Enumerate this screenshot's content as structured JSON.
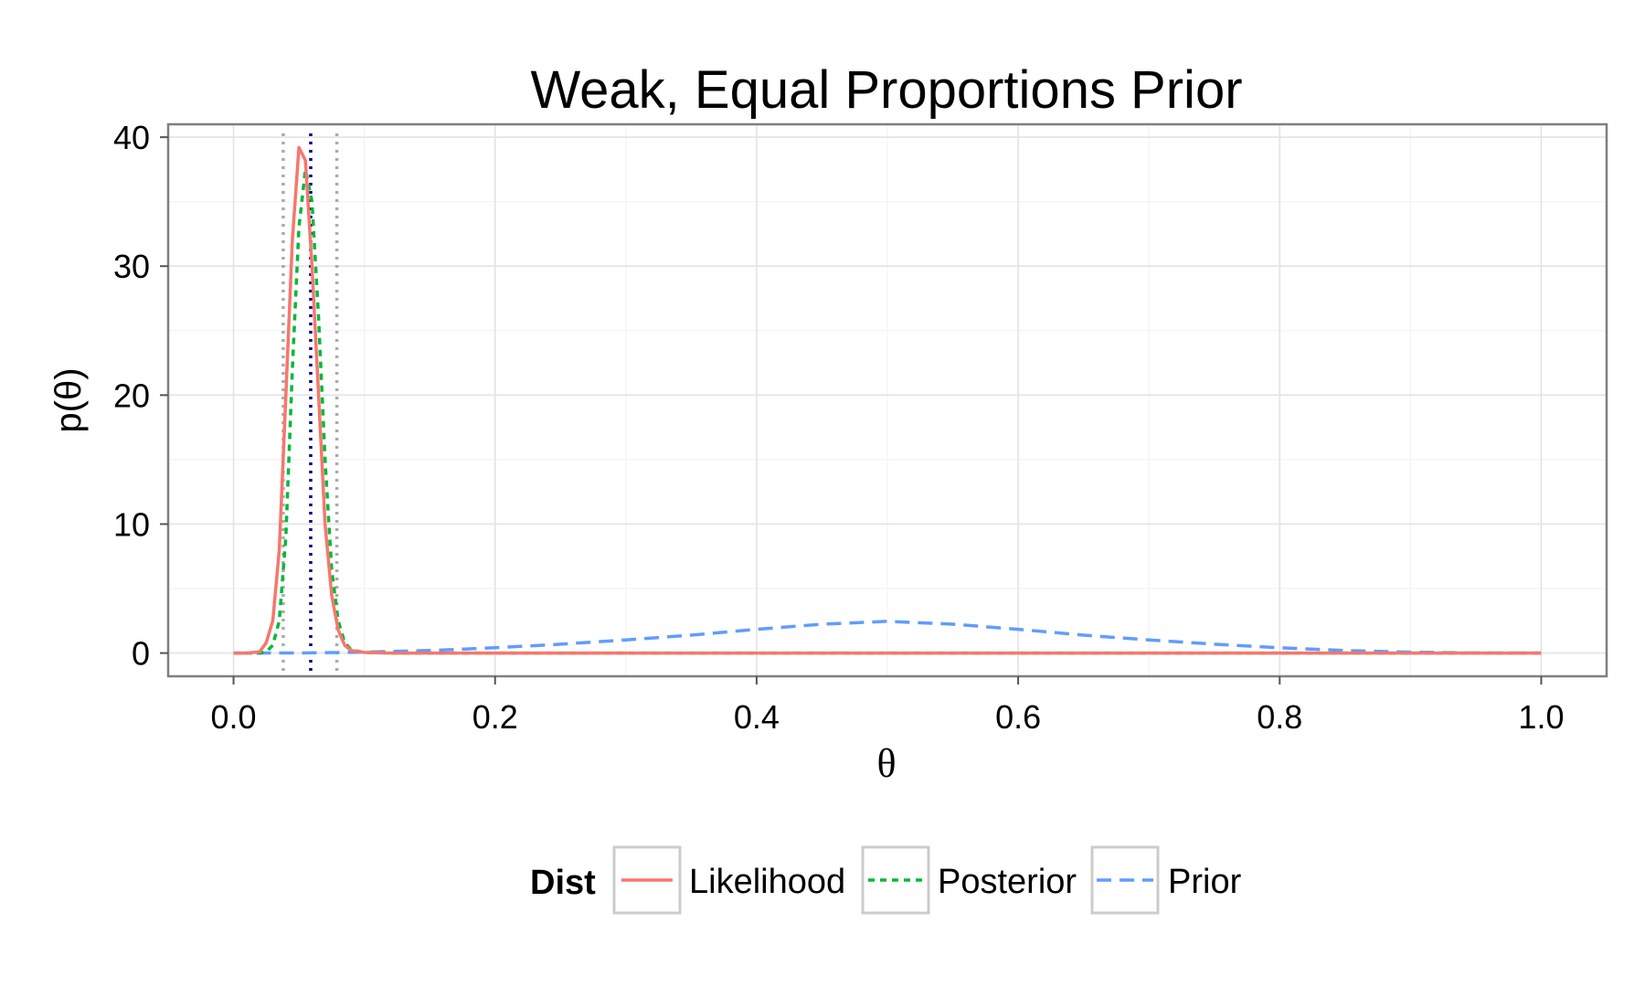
{
  "chart_data": {
    "type": "line",
    "title": "Weak, Equal Proportions Prior",
    "xlabel": "θ",
    "ylabel": "p(θ)",
    "xlim": [
      -0.05,
      1.05
    ],
    "ylim": [
      -1.8,
      41
    ],
    "x_ticks": [
      "0.0",
      "0.2",
      "0.4",
      "0.6",
      "0.8",
      "1.0"
    ],
    "x_tick_values": [
      0,
      0.2,
      0.4,
      0.6,
      0.8,
      1.0
    ],
    "y_ticks": [
      "0",
      "10",
      "20",
      "30",
      "40"
    ],
    "y_tick_values": [
      0,
      10,
      20,
      30,
      40
    ],
    "grid": true,
    "legend": {
      "position": "bottom",
      "title": "Dist",
      "entries": [
        "Likelihood",
        "Posterior",
        "Prior"
      ]
    },
    "series": [
      {
        "name": "Likelihood",
        "color": "#f8766d",
        "dash": "solid",
        "x": [
          0.0,
          0.01,
          0.02,
          0.025,
          0.03,
          0.035,
          0.04,
          0.045,
          0.05,
          0.055,
          0.06,
          0.065,
          0.07,
          0.075,
          0.08,
          0.085,
          0.09,
          0.1,
          0.12,
          0.2,
          0.4,
          0.6,
          0.8,
          1.0
        ],
        "y": [
          0,
          0,
          0.1,
          0.8,
          2.5,
          8,
          20,
          32,
          39.2,
          38.2,
          30,
          20,
          10,
          4.5,
          1.8,
          0.6,
          0.2,
          0.05,
          0,
          0,
          0,
          0,
          0,
          0
        ]
      },
      {
        "name": "Posterior",
        "color": "#00ba38",
        "dash": "short",
        "x": [
          0.0,
          0.02,
          0.025,
          0.03,
          0.035,
          0.04,
          0.045,
          0.05,
          0.055,
          0.06,
          0.065,
          0.07,
          0.075,
          0.08,
          0.085,
          0.09,
          0.1,
          0.12,
          0.2,
          0.4,
          0.6,
          0.8,
          1.0
        ],
        "y": [
          0,
          0,
          0.1,
          0.6,
          2.5,
          9,
          22,
          33,
          37.5,
          35,
          26,
          15,
          6.5,
          2.5,
          0.8,
          0.25,
          0.05,
          0,
          0,
          0,
          0,
          0,
          0
        ]
      },
      {
        "name": "Prior",
        "color": "#619cff",
        "dash": "long",
        "x": [
          0.0,
          0.05,
          0.1,
          0.15,
          0.2,
          0.25,
          0.3,
          0.35,
          0.4,
          0.45,
          0.5,
          0.55,
          0.6,
          0.65,
          0.7,
          0.75,
          0.8,
          0.85,
          0.9,
          0.95,
          1.0
        ],
        "y": [
          0,
          0.01,
          0.07,
          0.2,
          0.41,
          0.69,
          1.02,
          1.39,
          1.84,
          2.24,
          2.46,
          2.24,
          1.84,
          1.39,
          1.02,
          0.69,
          0.41,
          0.2,
          0.07,
          0.01,
          0
        ]
      }
    ],
    "reference_lines": [
      {
        "x": 0.059,
        "color": "#00008b",
        "style": "dotted"
      },
      {
        "x": 0.038,
        "color": "#aaaaaa",
        "style": "dotted"
      },
      {
        "x": 0.079,
        "color": "#aaaaaa",
        "style": "dotted"
      }
    ]
  }
}
